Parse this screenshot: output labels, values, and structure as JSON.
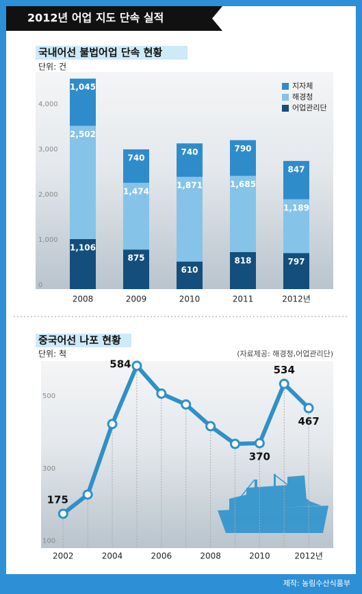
{
  "header": {
    "title": "2012년 어업 지도 단속 실적"
  },
  "footer": {
    "credit": "제작: 농림수산식품부"
  },
  "chart_data": [
    {
      "type": "bar",
      "stacked": true,
      "title": "국내어선 불법어업 단속 현황",
      "unit": "단위: 건",
      "categories": [
        "2008",
        "2009",
        "2010",
        "2011",
        "2012년"
      ],
      "series": [
        {
          "name": "어업관리단",
          "color": "#134e7c",
          "values": [
            1106,
            875,
            610,
            818,
            797
          ],
          "value_labels": [
            "1,106",
            "875",
            "610",
            "818",
            "797"
          ]
        },
        {
          "name": "해경청",
          "color": "#86c3e8",
          "values": [
            2502,
            1474,
            1871,
            1685,
            1189
          ],
          "value_labels": [
            "2,502",
            "1,474",
            "1,871",
            "1,685",
            "1,189"
          ]
        },
        {
          "name": "지자체",
          "color": "#2f8ccb",
          "values": [
            1045,
            740,
            740,
            790,
            847
          ],
          "value_labels": [
            "1,045",
            "740",
            "740",
            "790",
            "847"
          ]
        }
      ],
      "ylim": [
        0,
        4800
      ],
      "yticks": [
        0,
        {
          "value": 1000,
          "label": "1,000"
        },
        {
          "value": 2000,
          "label": "2,000"
        },
        {
          "value": 3000,
          "label": "3,000"
        },
        {
          "value": 4000,
          "label": "4,000"
        }
      ],
      "legend": "top-right"
    },
    {
      "type": "line",
      "title": "중국어선 나포 현황",
      "unit": "단위: 척",
      "note": "(자료제공: 해경청,어업관리단)",
      "x": [
        2002,
        2003,
        2004,
        2005,
        2006,
        2007,
        2008,
        2009,
        2010,
        2011,
        2012
      ],
      "values": [
        175,
        228,
        423,
        584,
        507,
        477,
        417,
        368,
        370,
        534,
        467
      ],
      "value_labels": [
        "175",
        null,
        null,
        "584",
        null,
        null,
        null,
        null,
        "370",
        "534",
        "467"
      ],
      "color": "#2f90c8",
      "xlim": [
        2001.1,
        2013
      ],
      "xticks": [
        2002,
        2004,
        2006,
        2008,
        2010,
        {
          "value": 2012,
          "label": "2012년"
        }
      ],
      "ylim": [
        80,
        597
      ],
      "yticks": [
        100,
        300,
        500
      ]
    }
  ]
}
